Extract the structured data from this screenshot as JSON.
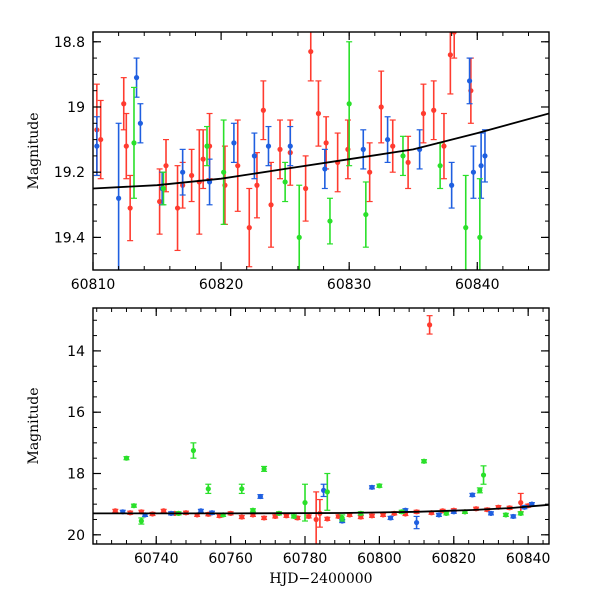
{
  "chart_data": [
    {
      "type": "scatter",
      "panel": "top",
      "title": "",
      "xlabel": "",
      "ylabel": "Magnitude",
      "xlim": [
        60810,
        60845.6
      ],
      "ylim": [
        19.5,
        18.77
      ],
      "y_inverted": true,
      "grid": false,
      "legend": "none",
      "x_ticks": [
        60810,
        60820,
        60830,
        60840
      ],
      "x_tick_labels": [
        "60810",
        "60820",
        "60830",
        "60840"
      ],
      "y_ticks": [
        18.8,
        19,
        19.2,
        19.4
      ],
      "y_tick_labels": [
        "18.8",
        "19",
        "19.2",
        "19.4"
      ],
      "series": [
        {
          "color": "#ff3b2f",
          "points": [
            {
              "x": 60810.3,
              "y": 19.07,
              "err": 0.14
            },
            {
              "x": 60810.6,
              "y": 19.1,
              "err": 0.12
            },
            {
              "x": 60812.4,
              "y": 18.99,
              "err": 0.08
            },
            {
              "x": 60812.6,
              "y": 19.12,
              "err": 0.1
            },
            {
              "x": 60812.9,
              "y": 19.31,
              "err": 0.1
            },
            {
              "x": 60815.2,
              "y": 19.29,
              "err": 0.1
            },
            {
              "x": 60815.7,
              "y": 19.18,
              "err": 0.08
            },
            {
              "x": 60816.6,
              "y": 19.31,
              "err": 0.13
            },
            {
              "x": 60817.0,
              "y": 19.24,
              "err": 0.07
            },
            {
              "x": 60817.7,
              "y": 19.21,
              "err": 0.08
            },
            {
              "x": 60818.3,
              "y": 19.23,
              "err": 0.16
            },
            {
              "x": 60818.6,
              "y": 19.16,
              "err": 0.09
            },
            {
              "x": 60819.1,
              "y": 19.12,
              "err": 0.1
            },
            {
              "x": 60820.3,
              "y": 19.24,
              "err": 0.12
            },
            {
              "x": 60821.3,
              "y": 19.18,
              "err": 0.14
            },
            {
              "x": 60822.2,
              "y": 19.37,
              "err": 0.12
            },
            {
              "x": 60822.8,
              "y": 19.24,
              "err": 0.1
            },
            {
              "x": 60823.3,
              "y": 19.01,
              "err": 0.09
            },
            {
              "x": 60823.9,
              "y": 19.3,
              "err": 0.13
            },
            {
              "x": 60824.6,
              "y": 19.13,
              "err": 0.09
            },
            {
              "x": 60825.4,
              "y": 19.14,
              "err": 0.1
            },
            {
              "x": 60826.6,
              "y": 19.25,
              "err": 0.1
            },
            {
              "x": 60827.0,
              "y": 18.83,
              "err": 0.09
            },
            {
              "x": 60827.6,
              "y": 19.02,
              "err": 0.1
            },
            {
              "x": 60828.2,
              "y": 19.11,
              "err": 0.08
            },
            {
              "x": 60829.1,
              "y": 19.17,
              "err": 0.09
            },
            {
              "x": 60829.9,
              "y": 19.13,
              "err": 0.09
            },
            {
              "x": 60831.6,
              "y": 19.2,
              "err": 0.09
            },
            {
              "x": 60832.5,
              "y": 19.0,
              "err": 0.11
            },
            {
              "x": 60833.4,
              "y": 19.12,
              "err": 0.08
            },
            {
              "x": 60834.6,
              "y": 19.17,
              "err": 0.08
            },
            {
              "x": 60835.8,
              "y": 19.02,
              "err": 0.09
            },
            {
              "x": 60836.6,
              "y": 19.01,
              "err": 0.09
            },
            {
              "x": 60837.4,
              "y": 19.12,
              "err": 0.1
            },
            {
              "x": 60837.9,
              "y": 18.84,
              "err": 0.12
            },
            {
              "x": 60838.2,
              "y": 18.77,
              "err": 0.08
            },
            {
              "x": 60839.5,
              "y": 18.95,
              "err": 0.1
            }
          ]
        },
        {
          "color": "#1f5fe0",
          "points": [
            {
              "x": 60810.3,
              "y": 19.12,
              "err": 0.09
            },
            {
              "x": 60812.0,
              "y": 19.28,
              "err": 0.23
            },
            {
              "x": 60813.4,
              "y": 18.91,
              "err": 0.06
            },
            {
              "x": 60813.7,
              "y": 19.05,
              "err": 0.06
            },
            {
              "x": 60815.4,
              "y": 19.25,
              "err": 0.05
            },
            {
              "x": 60817.0,
              "y": 19.2,
              "err": 0.07
            },
            {
              "x": 60819.1,
              "y": 19.23,
              "err": 0.07
            },
            {
              "x": 60821.0,
              "y": 19.11,
              "err": 0.06
            },
            {
              "x": 60822.6,
              "y": 19.15,
              "err": 0.07
            },
            {
              "x": 60823.7,
              "y": 19.12,
              "err": 0.06
            },
            {
              "x": 60825.4,
              "y": 19.12,
              "err": 0.06
            },
            {
              "x": 60828.1,
              "y": 19.19,
              "err": 0.06
            },
            {
              "x": 60831.1,
              "y": 19.13,
              "err": 0.06
            },
            {
              "x": 60833.0,
              "y": 19.1,
              "err": 0.07
            },
            {
              "x": 60835.5,
              "y": 19.13,
              "err": 0.06
            },
            {
              "x": 60838.0,
              "y": 19.24,
              "err": 0.07
            },
            {
              "x": 60839.4,
              "y": 18.92,
              "err": 0.07
            },
            {
              "x": 60839.7,
              "y": 19.2,
              "err": 0.08
            },
            {
              "x": 60840.3,
              "y": 19.18,
              "err": 0.1
            },
            {
              "x": 60840.6,
              "y": 19.15,
              "err": 0.08
            }
          ]
        },
        {
          "color": "#2ae02a",
          "points": [
            {
              "x": 60813.2,
              "y": 19.11,
              "err": 0.17
            },
            {
              "x": 60815.5,
              "y": 19.25,
              "err": 0.05
            },
            {
              "x": 60818.9,
              "y": 19.12,
              "err": 0.06
            },
            {
              "x": 60820.2,
              "y": 19.2,
              "err": 0.16
            },
            {
              "x": 60825.0,
              "y": 19.23,
              "err": 0.06
            },
            {
              "x": 60826.1,
              "y": 19.4,
              "err": 0.16
            },
            {
              "x": 60828.5,
              "y": 19.35,
              "err": 0.07
            },
            {
              "x": 60830.0,
              "y": 18.99,
              "err": 0.19
            },
            {
              "x": 60831.3,
              "y": 19.33,
              "err": 0.1
            },
            {
              "x": 60834.2,
              "y": 19.15,
              "err": 0.06
            },
            {
              "x": 60837.1,
              "y": 19.18,
              "err": 0.07
            },
            {
              "x": 60839.1,
              "y": 19.37,
              "err": 0.16
            },
            {
              "x": 60840.2,
              "y": 19.4,
              "err": 0.18
            }
          ]
        }
      ],
      "model_curve": {
        "color": "#000000",
        "points": [
          {
            "x": 60810,
            "y": 19.25
          },
          {
            "x": 60815,
            "y": 19.24
          },
          {
            "x": 60820,
            "y": 19.22
          },
          {
            "x": 60825,
            "y": 19.19
          },
          {
            "x": 60830,
            "y": 19.16
          },
          {
            "x": 60835,
            "y": 19.13
          },
          {
            "x": 60840,
            "y": 19.08
          },
          {
            "x": 60845.6,
            "y": 19.02
          }
        ]
      }
    },
    {
      "type": "scatter",
      "panel": "bottom",
      "title": "",
      "xlabel": "HJD−2400000",
      "ylabel": "Magnitude",
      "xlim": [
        60723,
        60845.6
      ],
      "ylim": [
        20.3,
        12.6
      ],
      "y_inverted": true,
      "grid": false,
      "legend": "none",
      "x_ticks": [
        60740,
        60760,
        60780,
        60800,
        60820,
        60840
      ],
      "x_tick_labels": [
        "60740",
        "60760",
        "60780",
        "60800",
        "60820",
        "60840"
      ],
      "y_ticks": [
        14,
        16,
        18,
        20
      ],
      "y_tick_labels": [
        "14",
        "16",
        "18",
        "20"
      ],
      "series": [
        {
          "color": "#ff3b2f",
          "points": [
            {
              "x": 60729,
              "y": 19.22,
              "err": 0.05
            },
            {
              "x": 60733,
              "y": 19.28,
              "err": 0.05
            },
            {
              "x": 60736,
              "y": 19.25,
              "err": 0.05
            },
            {
              "x": 60739,
              "y": 19.32,
              "err": 0.05
            },
            {
              "x": 60742,
              "y": 19.22,
              "err": 0.05
            },
            {
              "x": 60745,
              "y": 19.3,
              "err": 0.05
            },
            {
              "x": 60748,
              "y": 19.28,
              "err": 0.05
            },
            {
              "x": 60751,
              "y": 19.35,
              "err": 0.05
            },
            {
              "x": 60754,
              "y": 19.33,
              "err": 0.05
            },
            {
              "x": 60757,
              "y": 19.38,
              "err": 0.05
            },
            {
              "x": 60760,
              "y": 19.3,
              "err": 0.05
            },
            {
              "x": 60763,
              "y": 19.42,
              "err": 0.05
            },
            {
              "x": 60766,
              "y": 19.35,
              "err": 0.05
            },
            {
              "x": 60769,
              "y": 19.45,
              "err": 0.05
            },
            {
              "x": 60772,
              "y": 19.4,
              "err": 0.05
            },
            {
              "x": 60775,
              "y": 19.38,
              "err": 0.05
            },
            {
              "x": 60778,
              "y": 19.45,
              "err": 0.05
            },
            {
              "x": 60781,
              "y": 19.4,
              "err": 0.05
            },
            {
              "x": 60783,
              "y": 19.5,
              "err": 0.9
            },
            {
              "x": 60784,
              "y": 19.3,
              "err": 0.45
            },
            {
              "x": 60786,
              "y": 19.48,
              "err": 0.05
            },
            {
              "x": 60789,
              "y": 19.4,
              "err": 0.05
            },
            {
              "x": 60792,
              "y": 19.35,
              "err": 0.05
            },
            {
              "x": 60795,
              "y": 19.42,
              "err": 0.05
            },
            {
              "x": 60798,
              "y": 19.38,
              "err": 0.05
            },
            {
              "x": 60801,
              "y": 19.35,
              "err": 0.05
            },
            {
              "x": 60804,
              "y": 19.3,
              "err": 0.05
            },
            {
              "x": 60807,
              "y": 19.32,
              "err": 0.05
            },
            {
              "x": 60810,
              "y": 19.25,
              "err": 0.05
            },
            {
              "x": 60813.5,
              "y": 13.15,
              "err": 0.3
            },
            {
              "x": 60814,
              "y": 19.28,
              "err": 0.05
            },
            {
              "x": 60817,
              "y": 19.22,
              "err": 0.05
            },
            {
              "x": 60820,
              "y": 19.2,
              "err": 0.05
            },
            {
              "x": 60823,
              "y": 19.25,
              "err": 0.05
            },
            {
              "x": 60826,
              "y": 19.15,
              "err": 0.05
            },
            {
              "x": 60829,
              "y": 19.18,
              "err": 0.05
            },
            {
              "x": 60832,
              "y": 19.1,
              "err": 0.05
            },
            {
              "x": 60835,
              "y": 19.12,
              "err": 0.05
            },
            {
              "x": 60838,
              "y": 18.95,
              "err": 0.3
            },
            {
              "x": 60840,
              "y": 19.05,
              "err": 0.05
            }
          ]
        },
        {
          "color": "#1f5fe0",
          "points": [
            {
              "x": 60731,
              "y": 19.25,
              "err": 0.05
            },
            {
              "x": 60737,
              "y": 19.35,
              "err": 0.05
            },
            {
              "x": 60744,
              "y": 19.3,
              "err": 0.05
            },
            {
              "x": 60752,
              "y": 19.22,
              "err": 0.05
            },
            {
              "x": 60755,
              "y": 19.28,
              "err": 0.05
            },
            {
              "x": 60768,
              "y": 18.75,
              "err": 0.06
            },
            {
              "x": 60785,
              "y": 18.55,
              "err": 0.2
            },
            {
              "x": 60790,
              "y": 19.55,
              "err": 0.05
            },
            {
              "x": 60798,
              "y": 18.45,
              "err": 0.05
            },
            {
              "x": 60803,
              "y": 19.45,
              "err": 0.05
            },
            {
              "x": 60807,
              "y": 19.2,
              "err": 0.05
            },
            {
              "x": 60810,
              "y": 19.6,
              "err": 0.2
            },
            {
              "x": 60816,
              "y": 19.35,
              "err": 0.05
            },
            {
              "x": 60820,
              "y": 19.25,
              "err": 0.05
            },
            {
              "x": 60825,
              "y": 18.7,
              "err": 0.05
            },
            {
              "x": 60830,
              "y": 19.3,
              "err": 0.05
            },
            {
              "x": 60836,
              "y": 19.4,
              "err": 0.05
            },
            {
              "x": 60839,
              "y": 19.1,
              "err": 0.05
            },
            {
              "x": 60841,
              "y": 19.0,
              "err": 0.05
            }
          ]
        },
        {
          "color": "#2ae02a",
          "points": [
            {
              "x": 60732,
              "y": 17.5,
              "err": 0.05
            },
            {
              "x": 60734,
              "y": 19.05,
              "err": 0.05
            },
            {
              "x": 60736,
              "y": 19.55,
              "err": 0.1
            },
            {
              "x": 60746,
              "y": 19.3,
              "err": 0.05
            },
            {
              "x": 60750,
              "y": 17.25,
              "err": 0.25
            },
            {
              "x": 60754,
              "y": 18.5,
              "err": 0.15
            },
            {
              "x": 60758,
              "y": 19.35,
              "err": 0.05
            },
            {
              "x": 60763,
              "y": 18.5,
              "err": 0.15
            },
            {
              "x": 60766,
              "y": 19.2,
              "err": 0.05
            },
            {
              "x": 60769,
              "y": 17.85,
              "err": 0.08
            },
            {
              "x": 60773,
              "y": 19.3,
              "err": 0.05
            },
            {
              "x": 60777,
              "y": 19.4,
              "err": 0.05
            },
            {
              "x": 60780,
              "y": 18.95,
              "err": 0.6
            },
            {
              "x": 60786,
              "y": 18.6,
              "err": 0.6
            },
            {
              "x": 60790,
              "y": 19.45,
              "err": 0.1
            },
            {
              "x": 60795,
              "y": 19.3,
              "err": 0.05
            },
            {
              "x": 60800,
              "y": 18.4,
              "err": 0.05
            },
            {
              "x": 60806,
              "y": 19.25,
              "err": 0.05
            },
            {
              "x": 60812,
              "y": 17.6,
              "err": 0.05
            },
            {
              "x": 60818,
              "y": 19.3,
              "err": 0.05
            },
            {
              "x": 60823,
              "y": 19.25,
              "err": 0.05
            },
            {
              "x": 60827,
              "y": 18.55,
              "err": 0.08
            },
            {
              "x": 60828,
              "y": 18.05,
              "err": 0.3
            },
            {
              "x": 60834,
              "y": 19.35,
              "err": 0.05
            },
            {
              "x": 60838,
              "y": 19.3,
              "err": 0.05
            }
          ]
        }
      ],
      "model_curve": {
        "color": "#000000",
        "points": [
          {
            "x": 60723,
            "y": 19.3
          },
          {
            "x": 60760,
            "y": 19.3
          },
          {
            "x": 60790,
            "y": 19.29
          },
          {
            "x": 60810,
            "y": 19.25
          },
          {
            "x": 60825,
            "y": 19.19
          },
          {
            "x": 60835,
            "y": 19.13
          },
          {
            "x": 60845.6,
            "y": 19.02
          }
        ]
      }
    }
  ]
}
